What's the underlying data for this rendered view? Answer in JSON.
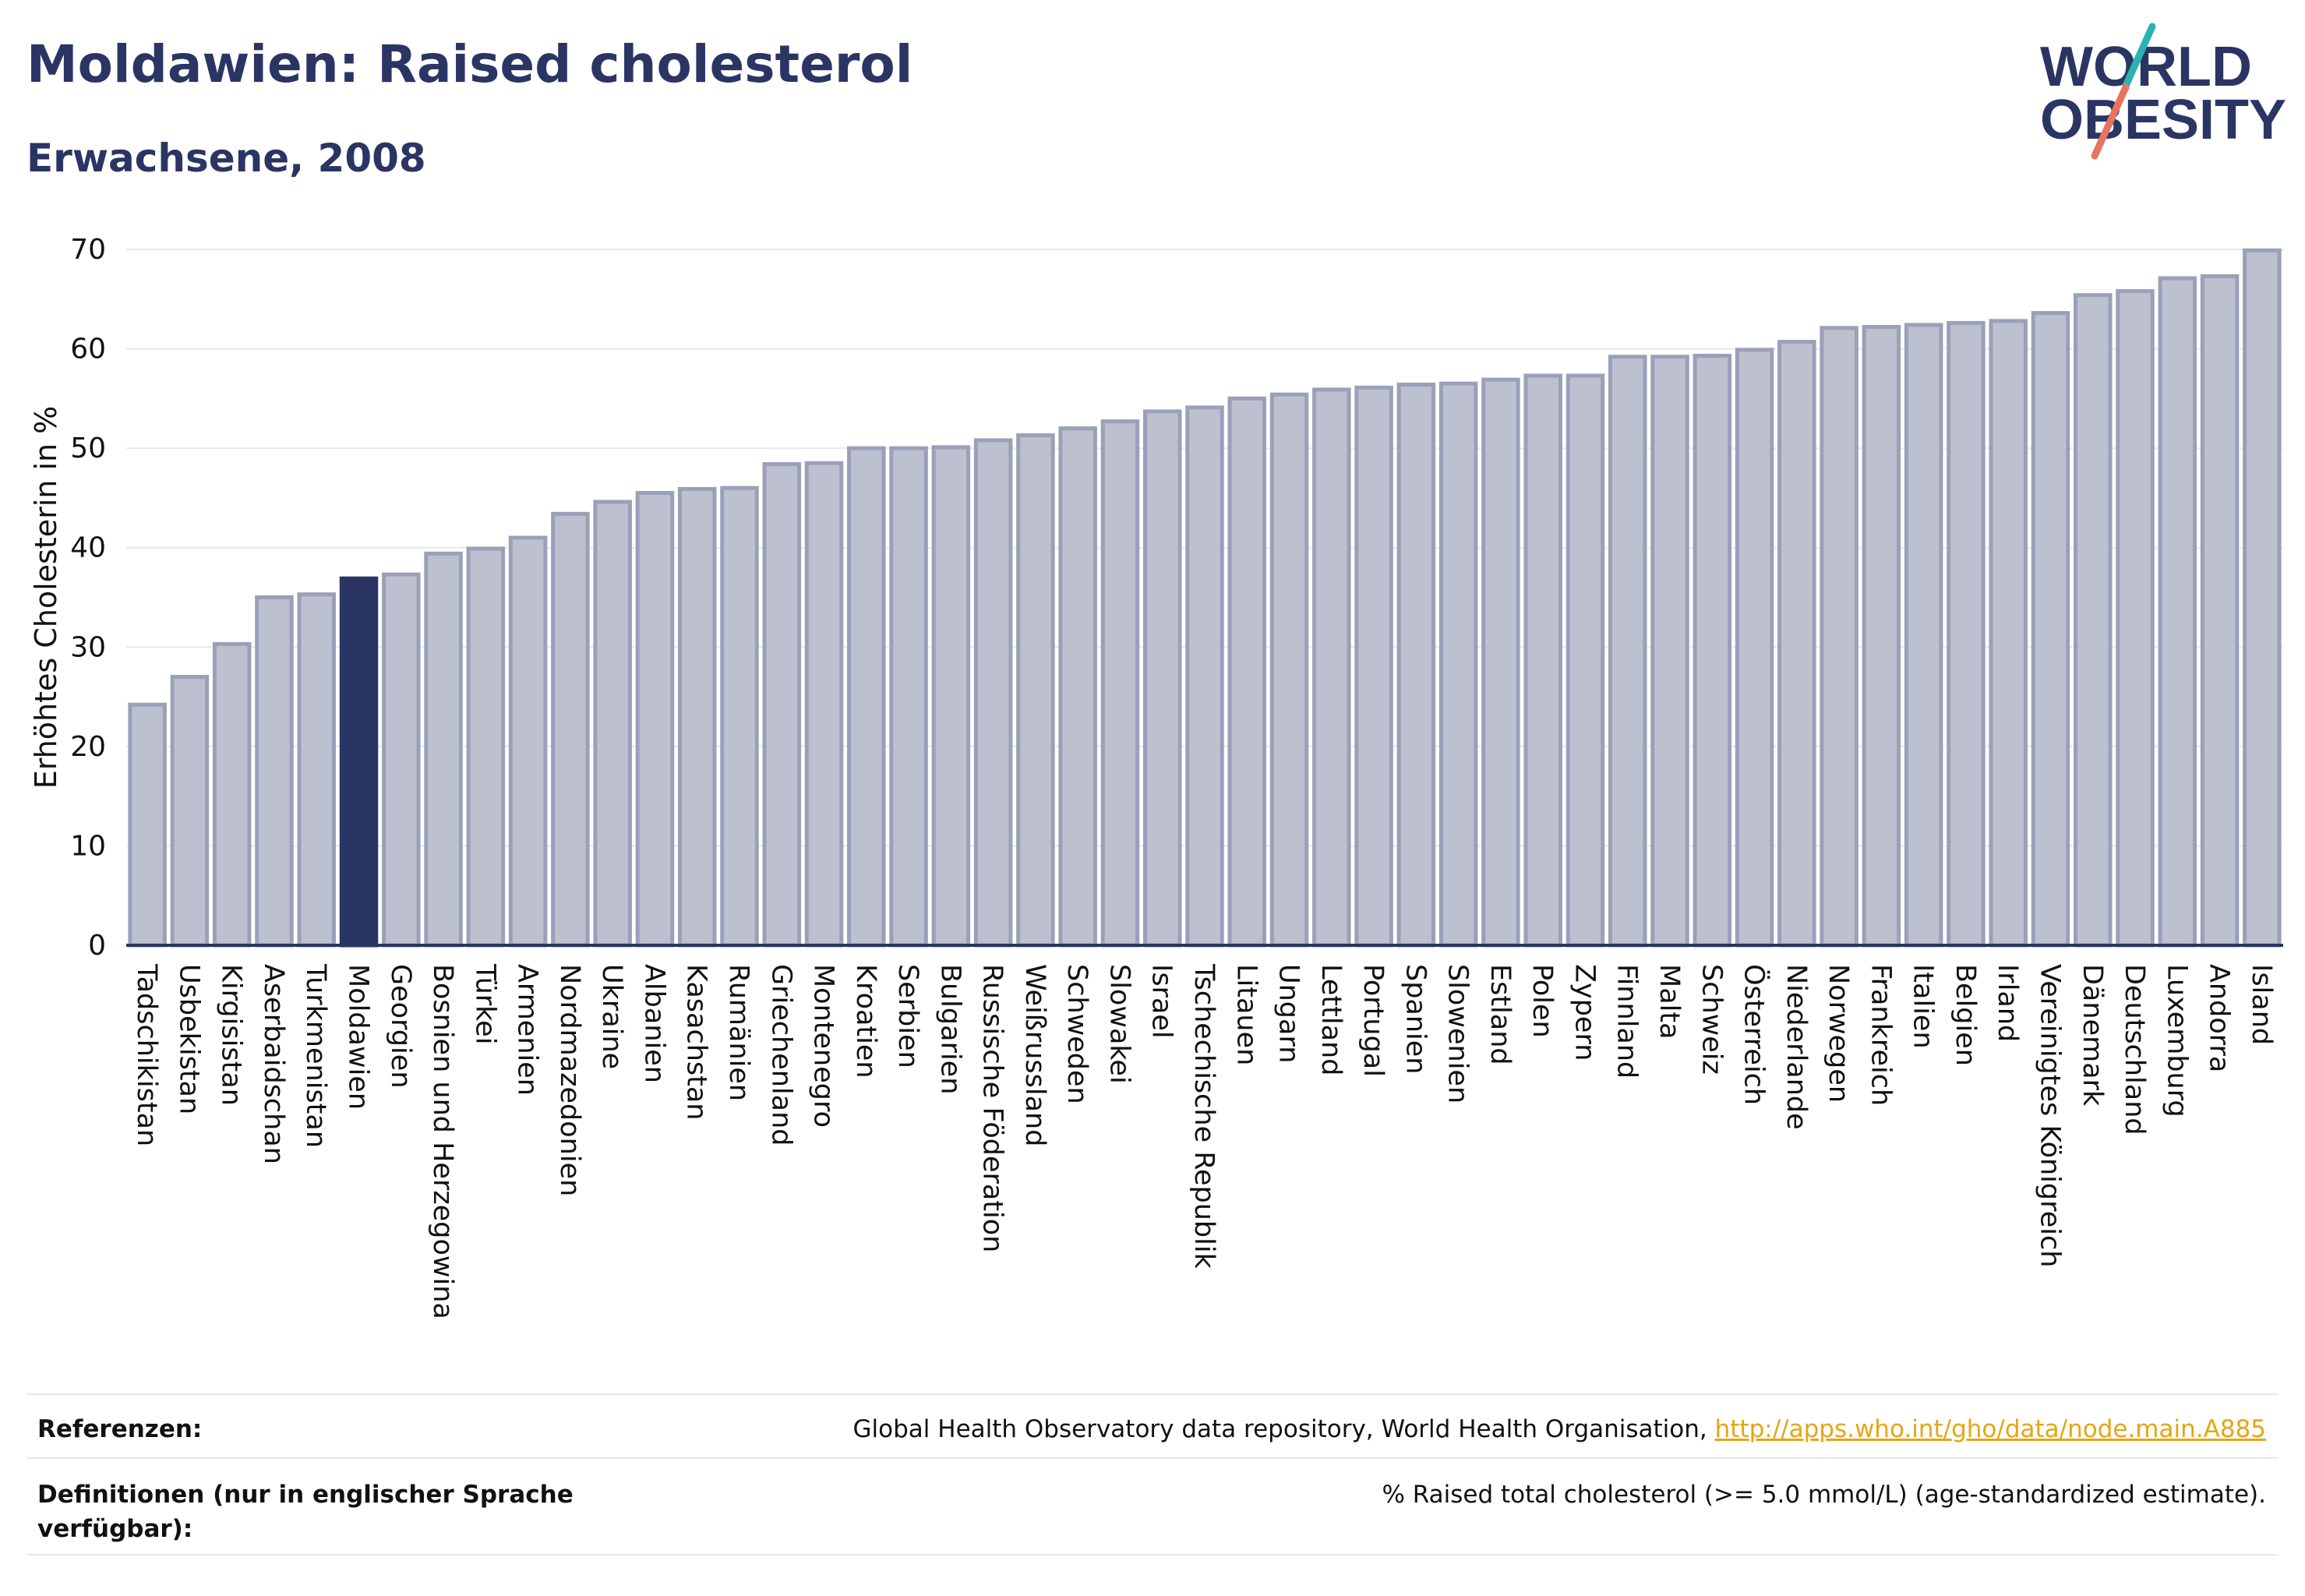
{
  "header": {
    "title": "Moldawien: Raised cholesterol",
    "subtitle": "Erwachsene, 2008"
  },
  "logo": {
    "line1": "WORLD",
    "line2": "OBESITY"
  },
  "colors": {
    "bar": "#bcc0cf",
    "bar_edge": "#9aa0b8",
    "highlight": "#2b3564",
    "text": "#2b3564",
    "grid": "#e6e8f0",
    "axis": "#2b3564",
    "link": "#e5a514",
    "logo_teal": "#2bb3b1",
    "logo_coral": "#e8745f"
  },
  "chart_data": {
    "type": "bar",
    "ylabel": "Erhöhtes Cholesterin in %",
    "xlabel": "",
    "ylim": [
      0,
      70
    ],
    "yticks": [
      0,
      10,
      20,
      30,
      40,
      50,
      60,
      70
    ],
    "grid": true,
    "highlight": "Moldawien",
    "categories": [
      "Tadschikistan",
      "Usbekistan",
      "Kirgisistan",
      "Aserbaidschan",
      "Turkmenistan",
      "Moldawien",
      "Georgien",
      "Bosnien und Herzegowina",
      "Türkei",
      "Armenien",
      "Nordmazedonien",
      "Ukraine",
      "Albanien",
      "Kasachstan",
      "Rumänien",
      "Griechenland",
      "Montenegro",
      "Kroatien",
      "Serbien",
      "Bulgarien",
      "Russische Föderation",
      "Weißrussland",
      "Schweden",
      "Slowakei",
      "Israel",
      "Tschechische Republik",
      "Litauen",
      "Ungarn",
      "Lettland",
      "Portugal",
      "Spanien",
      "Slowenien",
      "Estland",
      "Polen",
      "Zypern",
      "Finnland",
      "Malta",
      "Schweiz",
      "Österreich",
      "Niederlande",
      "Norwegen",
      "Frankreich",
      "Italien",
      "Belgien",
      "Irland",
      "Vereinigtes Königreich",
      "Dänemark",
      "Deutschland",
      "Luxemburg",
      "Andorra",
      "Island"
    ],
    "values": [
      24.2,
      27.0,
      30.3,
      35.0,
      35.3,
      36.9,
      37.3,
      39.4,
      39.9,
      41.0,
      43.4,
      44.6,
      45.5,
      45.9,
      46.0,
      48.4,
      48.5,
      50.0,
      50.0,
      50.1,
      50.8,
      51.3,
      52.0,
      52.7,
      53.7,
      54.1,
      55.0,
      55.4,
      55.9,
      56.1,
      56.4,
      56.5,
      56.9,
      57.3,
      57.3,
      59.2,
      59.2,
      59.3,
      59.9,
      60.7,
      62.1,
      62.2,
      62.4,
      62.6,
      62.8,
      63.6,
      65.4,
      65.8,
      67.1,
      67.3,
      69.9
    ]
  },
  "references": {
    "ref_label": "Referenzen:",
    "ref_text": "Global Health Observatory data repository, World Health Organisation, ",
    "ref_link": "http://apps.who.int/gho/data/node.main.A885",
    "def_label": "Definitionen (nur in englischer Sprache verfügbar):",
    "def_text": "% Raised total cholesterol (>= 5.0 mmol/L) (age-standardized estimate)."
  }
}
